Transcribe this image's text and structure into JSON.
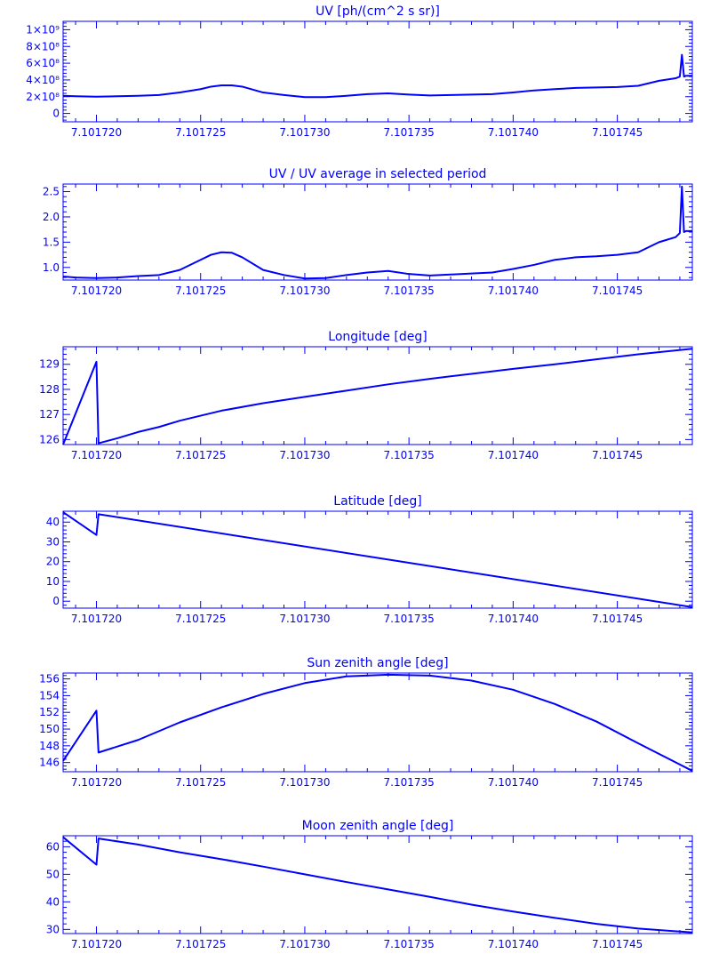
{
  "figure": {
    "color": "#0000ff",
    "background": "#ffffff"
  },
  "chart_data": [
    {
      "type": "line",
      "title": "UV [ph/(cm^2 s sr)]",
      "xlabel": "",
      "ylabel": "",
      "xlim": [
        7.1017184,
        7.1017486
      ],
      "ylim": [
        -100000000.0,
        1100000000.0
      ],
      "xticks": [
        "7.101720",
        "7.101725",
        "7.101730",
        "7.101735",
        "7.101740",
        "7.101745"
      ],
      "yticks": [
        "0",
        "2×10⁸",
        "4×10⁸",
        "6×10⁸",
        "8×10⁸",
        "1×10⁹"
      ],
      "y_tick_values": [
        0,
        200000000.0,
        400000000.0,
        600000000.0,
        800000000.0,
        1000000000.0
      ],
      "series": [
        {
          "x": [
            7.1017184,
            7.101719,
            7.10172,
            7.101721,
            7.101722,
            7.101723,
            7.101724,
            7.101725,
            7.1017255,
            7.101726,
            7.1017265,
            7.101727,
            7.101728,
            7.101729,
            7.10173,
            7.101731,
            7.101732,
            7.101733,
            7.101734,
            7.101735,
            7.101736,
            7.101737,
            7.101738,
            7.101739,
            7.10174,
            7.101741,
            7.101742,
            7.101743,
            7.101744,
            7.101745,
            7.101746,
            7.101747,
            7.1017478,
            7.101748,
            7.1017481,
            7.1017482,
            7.1017483,
            7.1017484,
            7.1017486
          ],
          "y": [
            210000000.0,
            205000000.0,
            200000000.0,
            205000000.0,
            210000000.0,
            220000000.0,
            250000000.0,
            290000000.0,
            320000000.0,
            335000000.0,
            335000000.0,
            320000000.0,
            250000000.0,
            220000000.0,
            195000000.0,
            195000000.0,
            210000000.0,
            230000000.0,
            240000000.0,
            225000000.0,
            215000000.0,
            220000000.0,
            225000000.0,
            230000000.0,
            250000000.0,
            275000000.0,
            290000000.0,
            305000000.0,
            310000000.0,
            315000000.0,
            330000000.0,
            390000000.0,
            420000000.0,
            440000000.0,
            700000000.0,
            440000000.0,
            450000000.0,
            450000000.0,
            450000000.0
          ]
        }
      ]
    },
    {
      "type": "line",
      "title": "UV / UV average in selected period",
      "xlabel": "",
      "ylabel": "",
      "xlim": [
        7.1017184,
        7.1017486
      ],
      "ylim": [
        0.75,
        2.65
      ],
      "xticks": [
        "7.101720",
        "7.101725",
        "7.101730",
        "7.101735",
        "7.101740",
        "7.101745"
      ],
      "yticks": [
        "1.0",
        "1.5",
        "2.0",
        "2.5"
      ],
      "y_tick_values": [
        1.0,
        1.5,
        2.0,
        2.5
      ],
      "series": [
        {
          "x": [
            7.1017184,
            7.101719,
            7.10172,
            7.101721,
            7.101722,
            7.101723,
            7.101724,
            7.101725,
            7.1017255,
            7.101726,
            7.1017265,
            7.101727,
            7.101728,
            7.101729,
            7.10173,
            7.101731,
            7.101732,
            7.101733,
            7.101734,
            7.101735,
            7.101736,
            7.101737,
            7.101738,
            7.101739,
            7.10174,
            7.101741,
            7.101742,
            7.101743,
            7.101744,
            7.101745,
            7.101746,
            7.101747,
            7.1017478,
            7.101748,
            7.1017481,
            7.1017482,
            7.1017483,
            7.1017484,
            7.1017486
          ],
          "y": [
            0.82,
            0.8,
            0.79,
            0.8,
            0.83,
            0.85,
            0.95,
            1.15,
            1.25,
            1.3,
            1.29,
            1.2,
            0.95,
            0.85,
            0.78,
            0.79,
            0.85,
            0.9,
            0.93,
            0.87,
            0.84,
            0.86,
            0.88,
            0.9,
            0.97,
            1.05,
            1.15,
            1.2,
            1.22,
            1.25,
            1.3,
            1.5,
            1.6,
            1.68,
            2.6,
            1.7,
            1.72,
            1.72,
            1.72
          ]
        }
      ]
    },
    {
      "type": "line",
      "title": "Longitude [deg]",
      "xlabel": "",
      "ylabel": "",
      "xlim": [
        7.1017184,
        7.1017486
      ],
      "ylim": [
        125.8,
        129.7
      ],
      "xticks": [
        "7.101720",
        "7.101725",
        "7.101730",
        "7.101735",
        "7.101740",
        "7.101745"
      ],
      "yticks": [
        "126",
        "127",
        "128",
        "129"
      ],
      "y_tick_values": [
        126,
        127,
        128,
        129
      ],
      "series": [
        {
          "x": [
            7.1017184,
            7.10172,
            7.1017201,
            7.101721,
            7.101722,
            7.101723,
            7.101724,
            7.101725,
            7.101726,
            7.101728,
            7.10173,
            7.101732,
            7.101734,
            7.101736,
            7.101738,
            7.10174,
            7.101742,
            7.101744,
            7.101746,
            7.1017486
          ],
          "y": [
            125.8,
            129.1,
            125.85,
            126.05,
            126.3,
            126.5,
            126.75,
            126.95,
            127.15,
            127.45,
            127.7,
            127.95,
            128.2,
            128.42,
            128.62,
            128.82,
            129.0,
            129.2,
            129.4,
            129.62
          ]
        }
      ]
    },
    {
      "type": "line",
      "title": "Latitude [deg]",
      "xlabel": "",
      "ylabel": "",
      "xlim": [
        7.1017184,
        7.1017486
      ],
      "ylim": [
        -3.5,
        45.5
      ],
      "xticks": [
        "7.101720",
        "7.101725",
        "7.101730",
        "7.101735",
        "7.101740",
        "7.101745"
      ],
      "yticks": [
        "0",
        "10",
        "20",
        "30",
        "40"
      ],
      "y_tick_values": [
        0,
        10,
        20,
        30,
        40
      ],
      "series": [
        {
          "x": [
            7.1017184,
            7.10172,
            7.1017201,
            7.1017486
          ],
          "y": [
            45.0,
            33.5,
            44.0,
            -3.0
          ]
        }
      ]
    },
    {
      "type": "line",
      "title": "Sun zenith angle [deg]",
      "xlabel": "",
      "ylabel": "",
      "xlim": [
        7.1017184,
        7.1017486
      ],
      "ylim": [
        144.9,
        156.7
      ],
      "xticks": [
        "7.101720",
        "7.101725",
        "7.101730",
        "7.101735",
        "7.101740",
        "7.101745"
      ],
      "yticks": [
        "146",
        "148",
        "150",
        "152",
        "154",
        "156"
      ],
      "y_tick_values": [
        146,
        148,
        150,
        152,
        154,
        156
      ],
      "series": [
        {
          "x": [
            7.1017184,
            7.10172,
            7.1017201,
            7.101722,
            7.101724,
            7.101726,
            7.101728,
            7.10173,
            7.101732,
            7.101734,
            7.101736,
            7.101738,
            7.10174,
            7.101742,
            7.101744,
            7.101746,
            7.1017486
          ],
          "y": [
            146.2,
            152.2,
            147.2,
            148.7,
            150.8,
            152.6,
            154.2,
            155.5,
            156.3,
            156.5,
            156.4,
            155.8,
            154.7,
            153.0,
            150.9,
            148.3,
            145.0
          ]
        }
      ]
    },
    {
      "type": "line",
      "title": "Moon zenith angle [deg]",
      "xlabel": "",
      "ylabel": "",
      "xlim": [
        7.1017184,
        7.1017486
      ],
      "ylim": [
        28.5,
        64.0
      ],
      "xticks": [
        "7.101720",
        "7.101725",
        "7.101730",
        "7.101735",
        "7.101740",
        "7.101745"
      ],
      "yticks": [
        "30",
        "40",
        "50",
        "60"
      ],
      "y_tick_values": [
        30,
        40,
        50,
        60
      ],
      "series": [
        {
          "x": [
            7.1017184,
            7.10172,
            7.1017201,
            7.101722,
            7.101724,
            7.101726,
            7.101728,
            7.10173,
            7.101732,
            7.101734,
            7.101736,
            7.101738,
            7.10174,
            7.101742,
            7.101744,
            7.101746,
            7.1017486
          ],
          "y": [
            63.5,
            53.5,
            63.0,
            60.8,
            58.0,
            55.5,
            52.8,
            50.0,
            47.2,
            44.5,
            41.8,
            39.0,
            36.5,
            34.2,
            32.0,
            30.3,
            28.9
          ]
        }
      ]
    }
  ]
}
